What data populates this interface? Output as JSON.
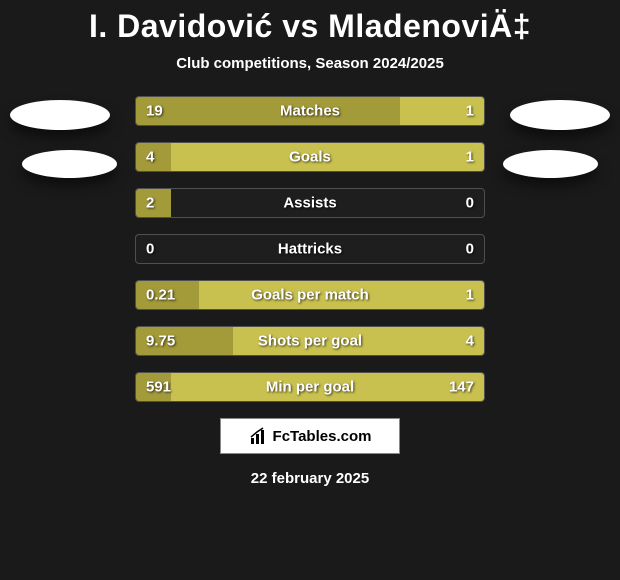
{
  "title": "I. Davidović vs MladenoviÄ‡",
  "subtitle": "Club competitions, Season 2024/2025",
  "date": "22 february 2025",
  "brand": "FcTables.com",
  "colors": {
    "bar_left": "#a39a3a",
    "bar_right": "#c9c14f",
    "badge": "#ffffff",
    "background": "#1a1a1a",
    "text": "#ffffff"
  },
  "stats": [
    {
      "label": "Matches",
      "left_val": "19",
      "right_val": "1",
      "left_pct": 76,
      "right_pct": 24
    },
    {
      "label": "Goals",
      "left_val": "4",
      "right_val": "1",
      "left_pct": 10,
      "right_pct": 90
    },
    {
      "label": "Assists",
      "left_val": "2",
      "right_val": "0",
      "left_pct": 10,
      "right_pct": 0
    },
    {
      "label": "Hattricks",
      "left_val": "0",
      "right_val": "0",
      "left_pct": 0,
      "right_pct": 0
    },
    {
      "label": "Goals per match",
      "left_val": "0.21",
      "right_val": "1",
      "left_pct": 18,
      "right_pct": 82
    },
    {
      "label": "Shots per goal",
      "left_val": "9.75",
      "right_val": "4",
      "left_pct": 28,
      "right_pct": 72
    },
    {
      "label": "Min per goal",
      "left_val": "591",
      "right_val": "147",
      "left_pct": 10,
      "right_pct": 90
    }
  ]
}
